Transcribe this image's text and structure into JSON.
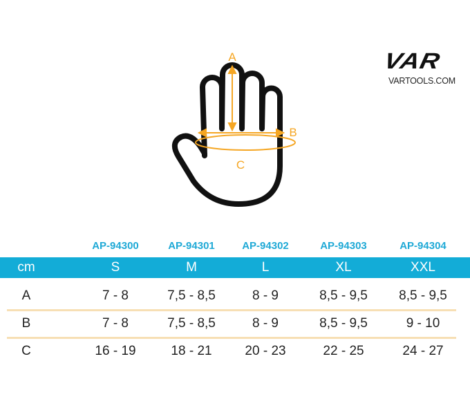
{
  "diagram": {
    "labels": {
      "a": "A",
      "b": "B",
      "c": "C"
    },
    "colors": {
      "outline": "#111111",
      "measure": "#f5a623"
    }
  },
  "brand": {
    "logo": "VAR",
    "url": "VARTOOLS.COM"
  },
  "table": {
    "codes": [
      "AP-94300",
      "AP-94301",
      "AP-94302",
      "AP-94303",
      "AP-94304"
    ],
    "header": {
      "unit": "cm",
      "sizes": [
        "S",
        "M",
        "L",
        "XL",
        "XXL"
      ]
    },
    "rows": [
      {
        "label": "A",
        "values": [
          "7 - 8",
          "7,5 - 8,5",
          "8 - 9",
          "8,5 - 9,5",
          "8,5 - 9,5"
        ]
      },
      {
        "label": "B",
        "values": [
          "7 - 8",
          "7,5 - 8,5",
          "8 - 9",
          "8,5 - 9,5",
          "9 - 10"
        ]
      },
      {
        "label": "C",
        "values": [
          "16 - 19",
          "18 - 21",
          "20 - 23",
          "22 - 25",
          "24 - 27"
        ]
      }
    ],
    "colors": {
      "header_bg": "#13acd7",
      "code_text": "#1fa9d6",
      "separator": "#f7dfb4"
    }
  }
}
